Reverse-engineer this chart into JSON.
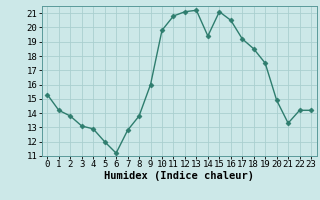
{
  "x": [
    0,
    1,
    2,
    3,
    4,
    5,
    6,
    7,
    8,
    9,
    10,
    11,
    12,
    13,
    14,
    15,
    16,
    17,
    18,
    19,
    20,
    21,
    22,
    23
  ],
  "y": [
    15.3,
    14.2,
    13.8,
    13.1,
    12.9,
    12.0,
    11.2,
    12.8,
    13.8,
    16.0,
    19.8,
    20.8,
    21.1,
    21.2,
    19.4,
    21.1,
    20.5,
    19.2,
    18.5,
    17.5,
    14.9,
    13.3,
    14.2,
    14.2
  ],
  "line_color": "#2e7d6e",
  "marker": "D",
  "markersize": 2.5,
  "linewidth": 1.0,
  "xlabel": "Humidex (Indice chaleur)",
  "bg_color": "#cce8e8",
  "grid_color": "#aacfcf",
  "xlim": [
    -0.5,
    23.5
  ],
  "ylim": [
    11,
    21.5
  ],
  "xticks": [
    0,
    1,
    2,
    3,
    4,
    5,
    6,
    7,
    8,
    9,
    10,
    11,
    12,
    13,
    14,
    15,
    16,
    17,
    18,
    19,
    20,
    21,
    22,
    23
  ],
  "yticks": [
    11,
    12,
    13,
    14,
    15,
    16,
    17,
    18,
    19,
    20,
    21
  ],
  "xlabel_fontsize": 7.5,
  "tick_fontsize": 6.5
}
